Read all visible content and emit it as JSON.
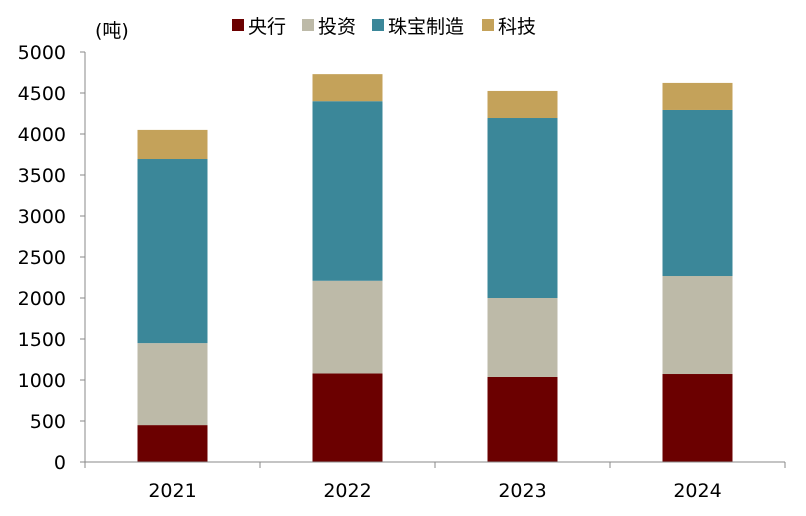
{
  "chart_data": {
    "type": "bar",
    "stacked": true,
    "unit_label": "(吨)",
    "categories": [
      "2021",
      "2022",
      "2023",
      "2024"
    ],
    "series": [
      {
        "name": "央行",
        "color": "#6b0000",
        "values": [
          450,
          1080,
          1037,
          1073
        ]
      },
      {
        "name": "投资",
        "color": "#bdbaa8",
        "values": [
          1000,
          1130,
          963,
          1195
        ]
      },
      {
        "name": "珠宝制造",
        "color": "#3b8799",
        "values": [
          2245,
          2190,
          2195,
          2025
        ]
      },
      {
        "name": "科技",
        "color": "#c4a25a",
        "values": [
          355,
          330,
          330,
          330
        ]
      }
    ],
    "ylim": [
      0,
      5000
    ],
    "yticks": [
      0,
      500,
      1000,
      1500,
      2000,
      2500,
      3000,
      3500,
      4000,
      4500,
      5000
    ],
    "grid": false,
    "legend": "top"
  }
}
